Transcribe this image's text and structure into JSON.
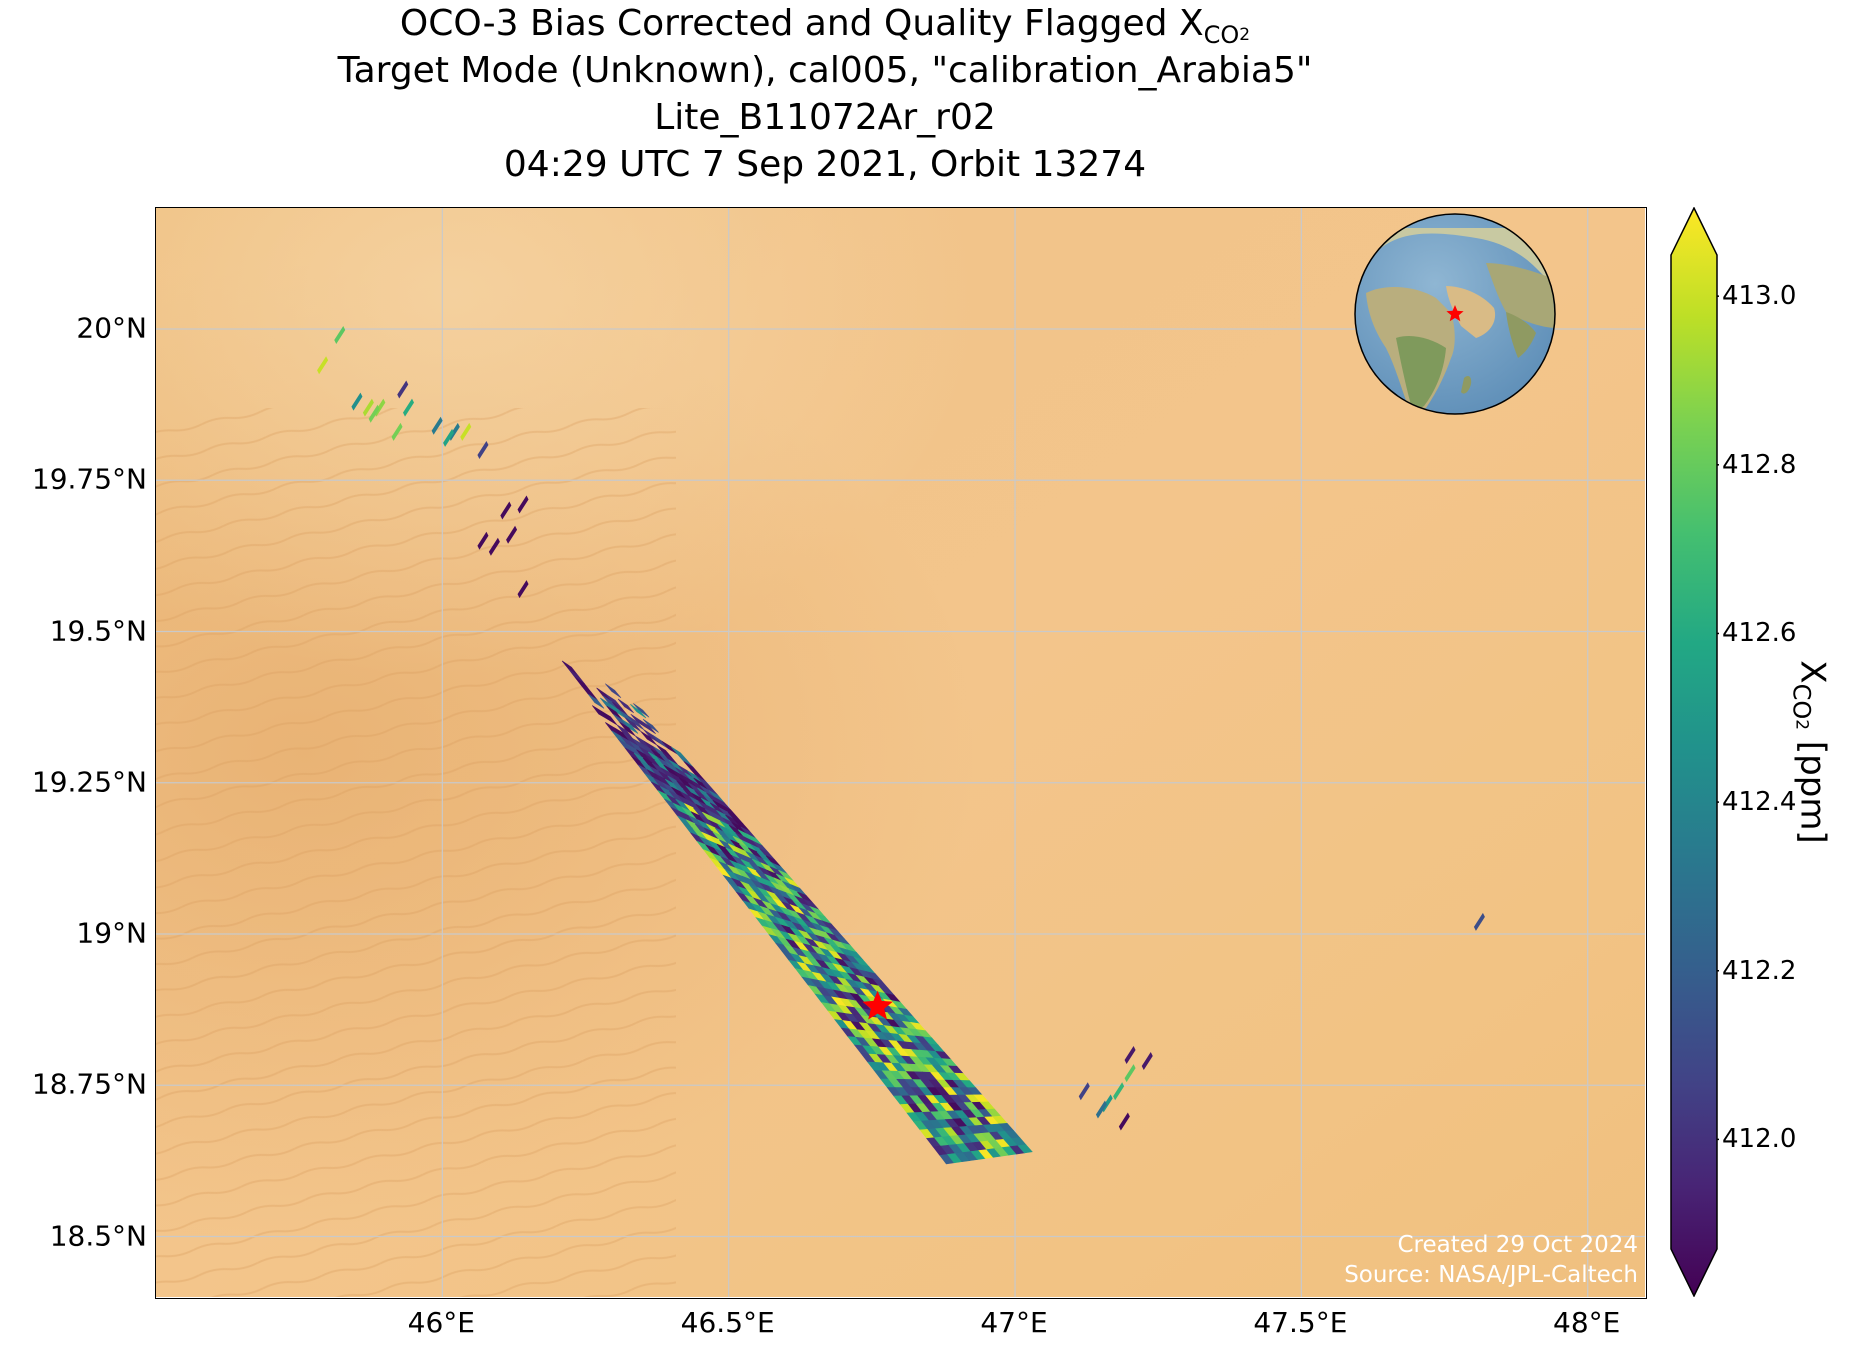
{
  "title": {
    "line1_prefix": "OCO-3 Bias Corrected and Quality Flagged X",
    "line1_sub": "CO",
    "line1_sub2": "2",
    "line2": "Target Mode (Unknown), cal005, \"calibration_Arabia5\"",
    "line3": "Lite_B11072Ar_r02",
    "line4": "04:29 UTC 7 Sep 2021, Orbit 13274"
  },
  "map": {
    "lon_range": [
      45.5,
      48.1
    ],
    "lat_range": [
      18.4,
      20.2
    ],
    "xticks": [
      {
        "value": 46.0,
        "label": "46°E"
      },
      {
        "value": 46.5,
        "label": "46.5°E"
      },
      {
        "value": 47.0,
        "label": "47°E"
      },
      {
        "value": 47.5,
        "label": "47.5°E"
      },
      {
        "value": 48.0,
        "label": "48°E"
      }
    ],
    "yticks": [
      {
        "value": 20.0,
        "label": "20°N"
      },
      {
        "value": 19.75,
        "label": "19.75°N"
      },
      {
        "value": 19.5,
        "label": "19.5°N"
      },
      {
        "value": 19.25,
        "label": "19.25°N"
      },
      {
        "value": 19.0,
        "label": "19°N"
      },
      {
        "value": 18.75,
        "label": "18.75°N"
      },
      {
        "value": 18.5,
        "label": "18.5°N"
      }
    ],
    "gridlines": true,
    "background": "desert satellite imagery",
    "target_marker": {
      "lon": 46.76,
      "lat": 18.88,
      "color": "#ff0000",
      "shape": "star"
    },
    "inset_globe": {
      "placement": "top-right",
      "target_color": "#ff0000"
    }
  },
  "swath": {
    "main_footprint_corners": [
      {
        "lon": 46.17,
        "lat": 19.49
      },
      {
        "lon": 46.35,
        "lat": 19.37
      },
      {
        "lon": 47.03,
        "lat": 18.64
      },
      {
        "lon": 46.88,
        "lat": 18.62
      }
    ],
    "isolated_soundings": [
      {
        "lon": 45.79,
        "lat": 19.94,
        "xco2": 412.95
      },
      {
        "lon": 45.82,
        "lat": 19.99,
        "xco2": 412.75
      },
      {
        "lon": 45.85,
        "lat": 19.88,
        "xco2": 412.45
      },
      {
        "lon": 45.87,
        "lat": 19.87,
        "xco2": 412.9
      },
      {
        "lon": 45.89,
        "lat": 19.87,
        "xco2": 412.85
      },
      {
        "lon": 45.88,
        "lat": 19.86,
        "xco2": 412.8
      },
      {
        "lon": 45.92,
        "lat": 19.83,
        "xco2": 412.8
      },
      {
        "lon": 45.94,
        "lat": 19.87,
        "xco2": 412.6
      },
      {
        "lon": 45.93,
        "lat": 19.9,
        "xco2": 412.05
      },
      {
        "lon": 45.99,
        "lat": 19.84,
        "xco2": 412.35
      },
      {
        "lon": 46.02,
        "lat": 19.83,
        "xco2": 412.35
      },
      {
        "lon": 46.01,
        "lat": 19.82,
        "xco2": 412.55
      },
      {
        "lon": 46.04,
        "lat": 19.83,
        "xco2": 412.95
      },
      {
        "lon": 46.07,
        "lat": 19.8,
        "xco2": 412.1
      },
      {
        "lon": 46.11,
        "lat": 19.7,
        "xco2": 411.9
      },
      {
        "lon": 46.14,
        "lat": 19.71,
        "xco2": 411.9
      },
      {
        "lon": 46.07,
        "lat": 19.65,
        "xco2": 411.9
      },
      {
        "lon": 46.09,
        "lat": 19.64,
        "xco2": 411.9
      },
      {
        "lon": 46.12,
        "lat": 19.66,
        "xco2": 411.9
      },
      {
        "lon": 46.14,
        "lat": 19.57,
        "xco2": 411.9
      },
      {
        "lon": 47.81,
        "lat": 19.02,
        "xco2": 412.15
      },
      {
        "lon": 47.12,
        "lat": 18.74,
        "xco2": 412.1
      },
      {
        "lon": 47.16,
        "lat": 18.72,
        "xco2": 412.5
      },
      {
        "lon": 47.18,
        "lat": 18.74,
        "xco2": 412.65
      },
      {
        "lon": 47.2,
        "lat": 18.77,
        "xco2": 412.75
      },
      {
        "lon": 47.2,
        "lat": 18.8,
        "xco2": 411.95
      },
      {
        "lon": 47.23,
        "lat": 18.79,
        "xco2": 411.95
      },
      {
        "lon": 47.19,
        "lat": 18.69,
        "xco2": 411.9
      },
      {
        "lon": 47.15,
        "lat": 18.71,
        "xco2": 412.3
      }
    ]
  },
  "colorbar": {
    "colormap": "viridis",
    "range": [
      411.87,
      413.05
    ],
    "extend": "both",
    "ticks": [
      {
        "value": 412.0,
        "label": "412.0"
      },
      {
        "value": 412.2,
        "label": "412.2"
      },
      {
        "value": 412.4,
        "label": "412.4"
      },
      {
        "value": 412.6,
        "label": "412.6"
      },
      {
        "value": 412.8,
        "label": "412.8"
      },
      {
        "value": 413.0,
        "label": "413.0"
      }
    ],
    "label_prefix": "X",
    "label_sub": "CO",
    "label_sub2": "2",
    "label_suffix": " [ppm]"
  },
  "credits": {
    "created": "Created 29 Oct 2024",
    "source": "Source: NASA/JPL-Caltech"
  }
}
